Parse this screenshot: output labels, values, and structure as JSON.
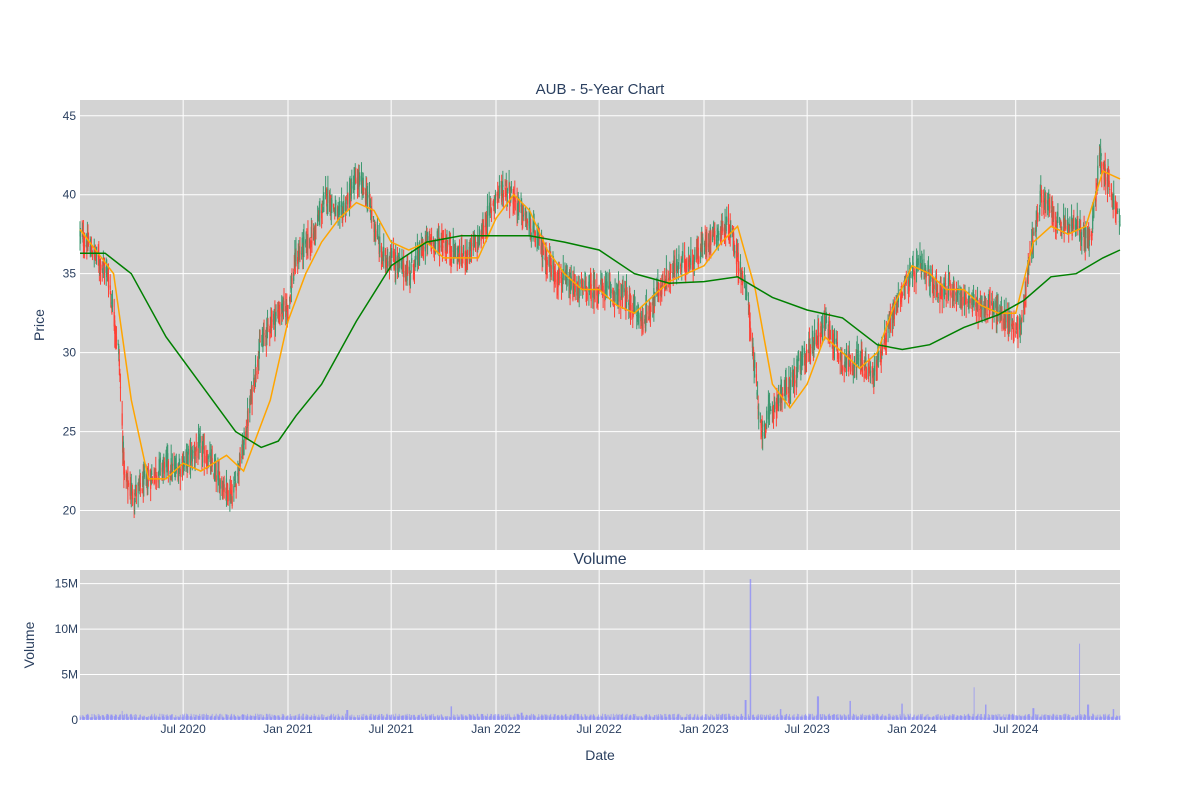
{
  "chart_data": [
    {
      "type": "candlestick",
      "title": "AUB - 5-Year Chart",
      "xlabel": "",
      "ylabel": "Price",
      "ylim": [
        17.5,
        46
      ],
      "yticks": [
        20,
        25,
        30,
        35,
        40,
        45
      ],
      "xlim": [
        "2020-01-02",
        "2024-12-31"
      ],
      "xticks": [
        "2020-07-01",
        "2021-01-01",
        "2021-07-01",
        "2022-01-01",
        "2022-07-01",
        "2023-01-01",
        "2023-07-01",
        "2024-01-01",
        "2024-07-01"
      ],
      "grid": true,
      "colors": {
        "up": "#3d9970",
        "down": "#ff4136",
        "ma_short": "#ffa500",
        "ma_long": "#008000",
        "background": "#d3d3d3",
        "grid": "#ffffff"
      },
      "series": [
        {
          "kind": "price-path",
          "x": [
            "2020-01-02",
            "2020-02-01",
            "2020-02-20",
            "2020-03-10",
            "2020-03-20",
            "2020-04-05",
            "2020-05-01",
            "2020-06-01",
            "2020-06-15",
            "2020-07-01",
            "2020-08-01",
            "2020-09-01",
            "2020-09-25",
            "2020-10-15",
            "2020-11-10",
            "2020-12-01",
            "2021-01-01",
            "2021-01-15",
            "2021-02-15",
            "2021-03-10",
            "2021-04-01",
            "2021-05-01",
            "2021-05-20",
            "2021-06-15",
            "2021-07-01",
            "2021-08-01",
            "2021-09-01",
            "2021-10-01",
            "2021-11-01",
            "2021-12-01",
            "2022-01-01",
            "2022-01-20",
            "2022-03-01",
            "2022-04-15",
            "2022-05-15",
            "2022-06-15",
            "2022-07-15",
            "2022-08-15",
            "2022-09-15",
            "2022-10-15",
            "2022-11-15",
            "2022-12-15",
            "2023-01-15",
            "2023-02-15",
            "2023-03-08",
            "2023-03-20",
            "2023-04-10",
            "2023-05-10",
            "2023-06-01",
            "2023-07-01",
            "2023-08-01",
            "2023-09-01",
            "2023-10-01",
            "2023-10-25",
            "2023-11-15",
            "2023-12-15",
            "2024-01-15",
            "2024-02-15",
            "2024-03-15",
            "2024-04-15",
            "2024-05-15",
            "2024-06-15",
            "2024-07-10",
            "2024-07-25",
            "2024-08-15",
            "2024-09-15",
            "2024-10-15",
            "2024-11-10",
            "2024-11-25",
            "2024-12-10",
            "2024-12-31"
          ],
          "y": [
            37.5,
            36,
            35,
            30,
            22,
            21,
            22,
            23,
            22.5,
            23,
            24,
            22,
            21,
            24,
            30,
            32,
            33,
            36,
            37.5,
            40,
            38.5,
            41,
            40,
            36,
            36,
            35,
            37,
            37,
            36,
            37,
            40,
            40.5,
            38,
            35,
            34,
            34,
            34,
            33.5,
            32,
            34,
            35.5,
            36,
            37.5,
            38,
            35,
            33,
            25,
            27,
            28,
            30,
            32,
            29.5,
            29.5,
            28.5,
            31,
            34,
            35.5,
            34,
            34,
            33,
            33,
            32,
            31.5,
            36,
            40,
            38,
            38,
            37,
            42.5,
            41,
            38
          ]
        },
        {
          "kind": "moving-average",
          "window": "short",
          "x": [
            "2020-01-02",
            "2020-03-01",
            "2020-04-01",
            "2020-05-01",
            "2020-06-01",
            "2020-07-01",
            "2020-08-01",
            "2020-09-15",
            "2020-10-15",
            "2020-12-01",
            "2021-01-01",
            "2021-02-01",
            "2021-03-01",
            "2021-04-01",
            "2021-05-01",
            "2021-06-01",
            "2021-07-01",
            "2021-08-01",
            "2021-09-01",
            "2021-10-01",
            "2021-11-01",
            "2021-12-01",
            "2022-01-01",
            "2022-02-01",
            "2022-03-01",
            "2022-04-01",
            "2022-05-01",
            "2022-06-01",
            "2022-07-01",
            "2022-08-01",
            "2022-09-01",
            "2022-10-01",
            "2022-11-01",
            "2022-12-01",
            "2023-01-01",
            "2023-02-01",
            "2023-03-01",
            "2023-04-01",
            "2023-05-01",
            "2023-06-01",
            "2023-07-01",
            "2023-08-01",
            "2023-09-01",
            "2023-10-01",
            "2023-11-01",
            "2023-12-01",
            "2024-01-01",
            "2024-02-01",
            "2024-03-01",
            "2024-04-01",
            "2024-05-01",
            "2024-06-01",
            "2024-07-01",
            "2024-08-01",
            "2024-09-01",
            "2024-10-01",
            "2024-11-01",
            "2024-12-01",
            "2024-12-31"
          ],
          "y": [
            37.8,
            35,
            27,
            22,
            22,
            23,
            22.5,
            23.5,
            22.5,
            27,
            32,
            35,
            37,
            38.5,
            39.5,
            39,
            37,
            36.5,
            37,
            36,
            36,
            36,
            38.5,
            40,
            39,
            36.5,
            35,
            34,
            34,
            33,
            32.5,
            33.5,
            34.5,
            35,
            35.5,
            37,
            38,
            34,
            28,
            26.5,
            28,
            31,
            30,
            29,
            30,
            33,
            35.5,
            35,
            34,
            34,
            33,
            32.5,
            32.5,
            37,
            38,
            37.5,
            38,
            41.5,
            41
          ]
        },
        {
          "kind": "moving-average",
          "window": "long",
          "x": [
            "2020-01-02",
            "2020-02-15",
            "2020-04-01",
            "2020-06-01",
            "2020-08-01",
            "2020-10-01",
            "2020-11-15",
            "2020-12-15",
            "2021-01-15",
            "2021-03-01",
            "2021-05-01",
            "2021-07-01",
            "2021-09-01",
            "2021-11-01",
            "2022-01-01",
            "2022-03-01",
            "2022-05-01",
            "2022-07-01",
            "2022-09-01",
            "2022-11-01",
            "2023-01-01",
            "2023-03-01",
            "2023-05-01",
            "2023-07-01",
            "2023-09-01",
            "2023-11-01",
            "2023-12-15",
            "2024-02-01",
            "2024-04-01",
            "2024-06-01",
            "2024-07-15",
            "2024-09-01",
            "2024-10-15",
            "2024-12-01",
            "2024-12-31"
          ],
          "y": [
            36.3,
            36.3,
            35,
            31,
            28,
            25,
            24,
            24.4,
            26,
            28,
            32,
            35.5,
            37,
            37.4,
            37.4,
            37.4,
            37,
            36.5,
            35,
            34.4,
            34.5,
            34.8,
            33.5,
            32.7,
            32.2,
            30.5,
            30.2,
            30.5,
            31.6,
            32.4,
            33.3,
            34.8,
            35,
            36,
            36.5
          ]
        }
      ]
    },
    {
      "type": "bar",
      "title": "Volume",
      "xlabel": "Date",
      "ylabel": "Volume",
      "ylim": [
        0,
        16500000
      ],
      "yticks": [
        0,
        5000000,
        10000000,
        15000000
      ],
      "ytick_labels": [
        "0",
        "5M",
        "10M",
        "15M"
      ],
      "xticks": [
        "2020-07-01",
        "2021-01-01",
        "2021-07-01",
        "2022-01-01",
        "2022-07-01",
        "2023-01-01",
        "2023-07-01",
        "2024-01-01",
        "2024-07-01"
      ],
      "xtick_labels": [
        "Jul 2020",
        "Jan 2021",
        "Jul 2021",
        "Jan 2022",
        "Jul 2022",
        "Jan 2023",
        "Jul 2023",
        "Jan 2024",
        "Jul 2024"
      ],
      "grid": true,
      "colors": {
        "bar": "#8080ff",
        "background": "#d3d3d3"
      },
      "baseline": 500000,
      "spikes": [
        {
          "x": "2020-03-15",
          "y": 1000000
        },
        {
          "x": "2020-10-15",
          "y": 600000
        },
        {
          "x": "2021-04-15",
          "y": 1100000
        },
        {
          "x": "2021-10-15",
          "y": 1500000
        },
        {
          "x": "2022-02-15",
          "y": 800000
        },
        {
          "x": "2023-03-15",
          "y": 2200000
        },
        {
          "x": "2023-03-24",
          "y": 15500000
        },
        {
          "x": "2023-05-15",
          "y": 1200000
        },
        {
          "x": "2023-07-20",
          "y": 2600000
        },
        {
          "x": "2023-09-15",
          "y": 2100000
        },
        {
          "x": "2023-12-15",
          "y": 1800000
        },
        {
          "x": "2024-04-20",
          "y": 3600000
        },
        {
          "x": "2024-05-10",
          "y": 1700000
        },
        {
          "x": "2024-08-01",
          "y": 1300000
        },
        {
          "x": "2024-10-20",
          "y": 8400000
        },
        {
          "x": "2024-11-05",
          "y": 1700000
        },
        {
          "x": "2024-12-20",
          "y": 1200000
        }
      ]
    }
  ]
}
